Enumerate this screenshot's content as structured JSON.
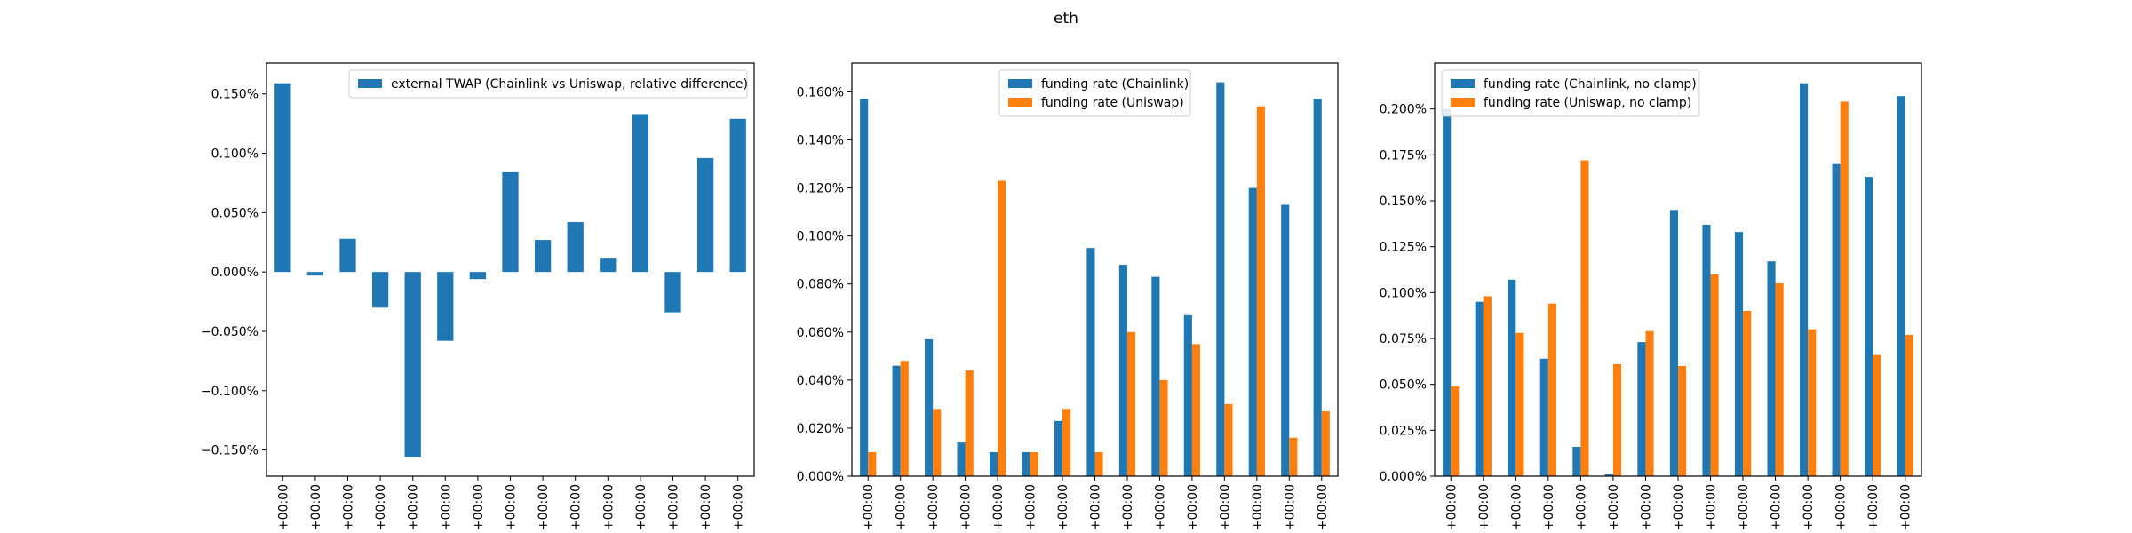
{
  "figure": {
    "title": "eth"
  },
  "chart_data": [
    {
      "type": "bar",
      "x_tick_label": "+00:00",
      "n_categories": 15,
      "series": [
        {
          "name": "external TWAP (Chainlink vs Uniswap, relative difference)",
          "color": "#1f77b4",
          "values": [
            0.159,
            -0.003,
            0.028,
            -0.03,
            -0.156,
            -0.058,
            -0.006,
            0.084,
            0.027,
            0.042,
            0.012,
            0.133,
            -0.034,
            0.096,
            0.129
          ]
        }
      ],
      "ylim": [
        -0.172,
        0.176
      ],
      "yticks": [
        -0.15,
        -0.1,
        -0.05,
        0.0,
        0.05,
        0.1,
        0.15
      ],
      "ytick_format": "pct3",
      "legend": "top-right",
      "grid": false
    },
    {
      "type": "bar",
      "x_tick_label": "+00:00",
      "n_categories": 15,
      "series": [
        {
          "name": "funding rate (Chainlink)",
          "color": "#1f77b4",
          "values": [
            0.157,
            0.046,
            0.057,
            0.014,
            0.01,
            0.01,
            0.023,
            0.095,
            0.088,
            0.083,
            0.067,
            0.164,
            0.12,
            0.113,
            0.157
          ]
        },
        {
          "name": "funding rate (Uniswap)",
          "color": "#ff7f0e",
          "values": [
            0.01,
            0.048,
            0.028,
            0.044,
            0.123,
            0.01,
            0.028,
            0.01,
            0.06,
            0.04,
            0.055,
            0.03,
            0.154,
            0.016,
            0.027
          ]
        }
      ],
      "ylim": [
        0.0,
        0.172
      ],
      "yticks": [
        0.0,
        0.02,
        0.04,
        0.06,
        0.08,
        0.1,
        0.12,
        0.14,
        0.16
      ],
      "ytick_format": "pct3",
      "legend": "top-center",
      "grid": false
    },
    {
      "type": "bar",
      "x_tick_label": "+00:00",
      "n_categories": 15,
      "series": [
        {
          "name": "funding rate (Chainlink, no clamp)",
          "color": "#1f77b4",
          "values": [
            0.2,
            0.095,
            0.107,
            0.064,
            0.016,
            0.001,
            0.073,
            0.145,
            0.137,
            0.133,
            0.117,
            0.214,
            0.17,
            0.163,
            0.207
          ]
        },
        {
          "name": "funding rate (Uniswap, no clamp)",
          "color": "#ff7f0e",
          "values": [
            0.049,
            0.098,
            0.078,
            0.094,
            0.172,
            0.061,
            0.079,
            0.06,
            0.11,
            0.09,
            0.105,
            0.08,
            0.204,
            0.066,
            0.077
          ]
        }
      ],
      "ylim": [
        0.0,
        0.225
      ],
      "yticks": [
        0.0,
        0.025,
        0.05,
        0.075,
        0.1,
        0.125,
        0.15,
        0.175,
        0.2
      ],
      "ytick_format": "pct3",
      "legend": "top-left",
      "grid": false
    }
  ]
}
